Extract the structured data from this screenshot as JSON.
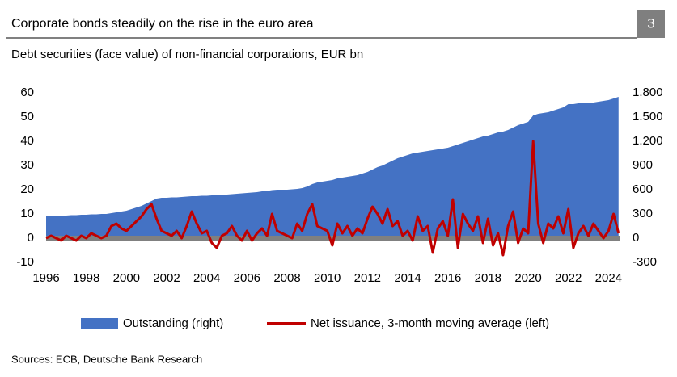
{
  "chart_data": {
    "type": "area-line",
    "title": "Corporate bonds steadily on the rise in the euro area",
    "chart_number": "3",
    "subtitle": "Debt securities (face value) of non-financial corporations, EUR bn",
    "source": "Sources: ECB, Deutsche Bank Research",
    "x": [
      1996,
      1996.25,
      1996.5,
      1996.75,
      1997,
      1997.25,
      1997.5,
      1997.75,
      1998,
      1998.25,
      1998.5,
      1998.75,
      1999,
      1999.25,
      1999.5,
      1999.75,
      2000,
      2000.25,
      2000.5,
      2000.75,
      2001,
      2001.25,
      2001.5,
      2001.75,
      2002,
      2002.25,
      2002.5,
      2002.75,
      2003,
      2003.25,
      2003.5,
      2003.75,
      2004,
      2004.25,
      2004.5,
      2004.75,
      2005,
      2005.25,
      2005.5,
      2005.75,
      2006,
      2006.25,
      2006.5,
      2006.75,
      2007,
      2007.25,
      2007.5,
      2007.75,
      2008,
      2008.25,
      2008.5,
      2008.75,
      2009,
      2009.25,
      2009.5,
      2009.75,
      2010,
      2010.25,
      2010.5,
      2010.75,
      2011,
      2011.25,
      2011.5,
      2011.75,
      2012,
      2012.25,
      2012.5,
      2012.75,
      2013,
      2013.25,
      2013.5,
      2013.75,
      2014,
      2014.25,
      2014.5,
      2014.75,
      2015,
      2015.25,
      2015.5,
      2015.75,
      2016,
      2016.25,
      2016.5,
      2016.75,
      2017,
      2017.25,
      2017.5,
      2017.75,
      2018,
      2018.25,
      2018.5,
      2018.75,
      2019,
      2019.25,
      2019.5,
      2019.75,
      2020,
      2020.25,
      2020.5,
      2020.75,
      2021,
      2021.25,
      2021.5,
      2021.75,
      2022,
      2022.25,
      2022.5,
      2022.75,
      2023,
      2023.25,
      2023.5,
      2023.75,
      2024,
      2024.25,
      2024.5
    ],
    "series": [
      {
        "name": "Outstanding (right)",
        "color": "#4472c4",
        "axis": "y2",
        "kind": "area",
        "values": [
          270,
          275,
          280,
          280,
          280,
          285,
          285,
          290,
          290,
          295,
          295,
          300,
          300,
          310,
          320,
          330,
          340,
          360,
          380,
          400,
          430,
          460,
          490,
          500,
          500,
          505,
          505,
          510,
          515,
          520,
          520,
          525,
          525,
          530,
          530,
          535,
          540,
          545,
          550,
          555,
          560,
          565,
          570,
          580,
          585,
          595,
          600,
          600,
          600,
          605,
          610,
          620,
          640,
          670,
          690,
          700,
          710,
          720,
          740,
          750,
          760,
          770,
          780,
          800,
          820,
          850,
          880,
          900,
          930,
          960,
          990,
          1010,
          1030,
          1050,
          1060,
          1070,
          1080,
          1090,
          1100,
          1110,
          1120,
          1140,
          1160,
          1180,
          1200,
          1220,
          1240,
          1260,
          1270,
          1290,
          1310,
          1320,
          1340,
          1370,
          1400,
          1420,
          1440,
          1520,
          1540,
          1550,
          1560,
          1580,
          1600,
          1620,
          1660,
          1660,
          1670,
          1670,
          1670,
          1680,
          1690,
          1700,
          1710,
          1730,
          1750
        ]
      },
      {
        "name": "Net issuance, 3-month moving average (left)",
        "color": "#c00000",
        "kind": "line",
        "values": [
          0,
          1,
          0,
          -1,
          1,
          0,
          -1,
          1,
          0,
          2,
          1,
          0,
          1,
          5,
          6,
          4,
          3,
          5,
          7,
          9,
          12,
          14,
          8,
          3,
          2,
          1,
          3,
          0,
          5,
          11,
          6,
          2,
          3,
          -2,
          -4,
          1,
          2,
          5,
          1,
          -1,
          3,
          -1,
          2,
          4,
          1,
          10,
          3,
          2,
          1,
          0,
          6,
          3,
          10,
          14,
          5,
          4,
          3,
          -3,
          6,
          2,
          5,
          1,
          4,
          2,
          8,
          13,
          10,
          6,
          12,
          5,
          7,
          1,
          3,
          -1,
          9,
          3,
          5,
          -6,
          4,
          7,
          1,
          16,
          -4,
          10,
          6,
          3,
          9,
          -2,
          8,
          -3,
          2,
          -7,
          5,
          11,
          -2,
          4,
          2,
          40,
          6,
          -2,
          6,
          4,
          9,
          2,
          12,
          -4,
          2,
          5,
          1,
          6,
          3,
          0,
          3,
          10,
          2
        ]
      }
    ],
    "xlim": [
      1996,
      2024.55
    ],
    "xticks": [
      1996,
      1998,
      2000,
      2002,
      2004,
      2006,
      2008,
      2010,
      2012,
      2014,
      2016,
      2018,
      2020,
      2022,
      2024
    ],
    "ylim": [
      -10,
      60
    ],
    "yticks": [
      60,
      50,
      40,
      30,
      20,
      10,
      0,
      -10
    ],
    "y2lim": [
      -300,
      1800
    ],
    "y2ticks": [
      {
        "value": 1800,
        "label": "1.800"
      },
      {
        "value": 1500,
        "label": "1.500"
      },
      {
        "value": 1200,
        "label": "1.200"
      },
      900,
      600,
      300,
      0,
      -300
    ]
  }
}
